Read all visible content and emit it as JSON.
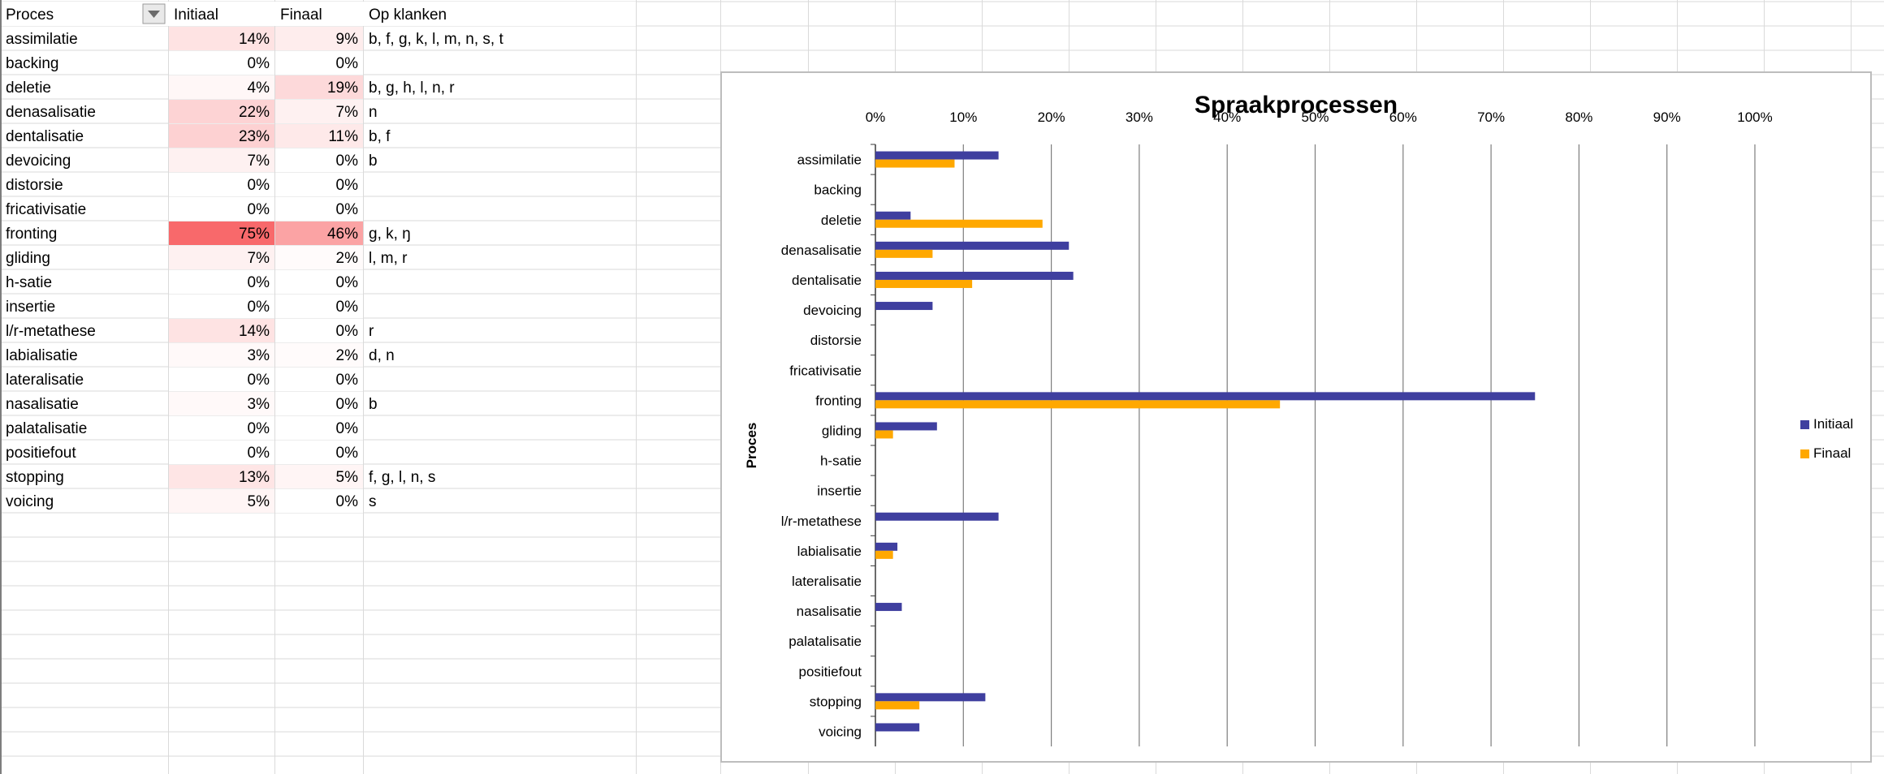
{
  "sheet": {
    "headers": [
      "Proces",
      "Initiaal",
      "Finaal",
      "Op klanken"
    ],
    "filter_icon": "dropdown-filter-icon",
    "rows": [
      {
        "proces": "assimilatie",
        "initiaal": "14%",
        "finaal": "9%",
        "klanken": "b, f, g, k, l, m, n, s, t"
      },
      {
        "proces": "backing",
        "initiaal": "0%",
        "finaal": "0%",
        "klanken": ""
      },
      {
        "proces": "deletie",
        "initiaal": "4%",
        "finaal": "19%",
        "klanken": "b, g, h, l, n, r"
      },
      {
        "proces": "denasalisatie",
        "initiaal": "22%",
        "finaal": "7%",
        "klanken": "n"
      },
      {
        "proces": "dentalisatie",
        "initiaal": "23%",
        "finaal": "11%",
        "klanken": "b, f"
      },
      {
        "proces": "devoicing",
        "initiaal": "7%",
        "finaal": "0%",
        "klanken": "b"
      },
      {
        "proces": "distorsie",
        "initiaal": "0%",
        "finaal": "0%",
        "klanken": ""
      },
      {
        "proces": "fricativisatie",
        "initiaal": "0%",
        "finaal": "0%",
        "klanken": ""
      },
      {
        "proces": "fronting",
        "initiaal": "75%",
        "finaal": "46%",
        "klanken": "g, k, ŋ"
      },
      {
        "proces": "gliding",
        "initiaal": "7%",
        "finaal": "2%",
        "klanken": "l, m, r"
      },
      {
        "proces": "h-satie",
        "initiaal": "0%",
        "finaal": "0%",
        "klanken": ""
      },
      {
        "proces": "insertie",
        "initiaal": "0%",
        "finaal": "0%",
        "klanken": ""
      },
      {
        "proces": "l/r-metathese",
        "initiaal": "14%",
        "finaal": "0%",
        "klanken": "r"
      },
      {
        "proces": "labialisatie",
        "initiaal": "3%",
        "finaal": "2%",
        "klanken": "d, n"
      },
      {
        "proces": "lateralisatie",
        "initiaal": "0%",
        "finaal": "0%",
        "klanken": ""
      },
      {
        "proces": "nasalisatie",
        "initiaal": "3%",
        "finaal": "0%",
        "klanken": "b"
      },
      {
        "proces": "palatalisatie",
        "initiaal": "0%",
        "finaal": "0%",
        "klanken": ""
      },
      {
        "proces": "positiefout",
        "initiaal": "0%",
        "finaal": "0%",
        "klanken": ""
      },
      {
        "proces": "stopping",
        "initiaal": "13%",
        "finaal": "5%",
        "klanken": "f, g, l, n, s"
      },
      {
        "proces": "voicing",
        "initiaal": "5%",
        "finaal": "0%",
        "klanken": "s"
      }
    ],
    "heat_color": "#f8696b"
  },
  "chart_data": {
    "type": "bar",
    "orientation": "horizontal",
    "title": "Spraakprocessen",
    "ylabel": "Proces",
    "xlabel": "",
    "xlim": [
      0,
      1
    ],
    "x_ticks": [
      "0%",
      "10%",
      "20%",
      "30%",
      "40%",
      "50%",
      "60%",
      "70%",
      "80%",
      "90%",
      "100%"
    ],
    "grid": true,
    "legend_position": "right",
    "categories": [
      "assimilatie",
      "backing",
      "deletie",
      "denasalisatie",
      "dentalisatie",
      "devoicing",
      "distorsie",
      "fricativisatie",
      "fronting",
      "gliding",
      "h-satie",
      "insertie",
      "l/r-metathese",
      "labialisatie",
      "lateralisatie",
      "nasalisatie",
      "palatalisatie",
      "positiefout",
      "stopping",
      "voicing"
    ],
    "series": [
      {
        "name": "Initiaal",
        "color": "#3f3f9f",
        "values": [
          0.14,
          0.0,
          0.04,
          0.22,
          0.225,
          0.065,
          0.0,
          0.0,
          0.75,
          0.07,
          0.0,
          0.0,
          0.14,
          0.025,
          0.0,
          0.03,
          0.0,
          0.0,
          0.125,
          0.05
        ]
      },
      {
        "name": "Finaal",
        "color": "#ffa800",
        "values": [
          0.09,
          0.0,
          0.19,
          0.065,
          0.11,
          0.0,
          0.0,
          0.0,
          0.46,
          0.02,
          0.0,
          0.0,
          0.0,
          0.02,
          0.0,
          0.0,
          0.0,
          0.0,
          0.05,
          0.0
        ]
      }
    ]
  }
}
